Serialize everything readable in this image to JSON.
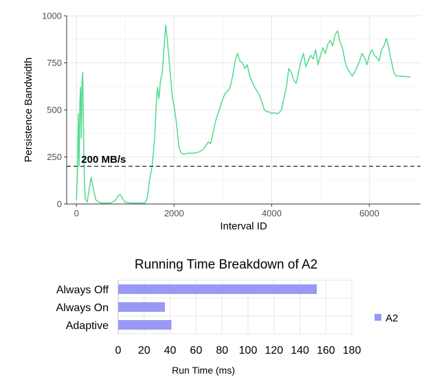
{
  "chart_data": [
    {
      "type": "line",
      "title": "",
      "xlabel": "Interval ID",
      "ylabel": "Persistence Bandwidth",
      "xlim": [
        -200,
        7050
      ],
      "ylim": [
        0,
        1000
      ],
      "x_ticks": [
        0,
        2000,
        4000,
        6000
      ],
      "y_ticks": [
        0,
        250,
        500,
        750,
        1000
      ],
      "grid": true,
      "line_color": "#4cdc8c",
      "reference_line": {
        "y": 200,
        "label": "200 MB/s",
        "style": "dashed"
      },
      "series": [
        {
          "points": [
            [
              0,
              20
            ],
            [
              20,
              150
            ],
            [
              40,
              480
            ],
            [
              55,
              200
            ],
            [
              70,
              540
            ],
            [
              85,
              620
            ],
            [
              100,
              350
            ],
            [
              115,
              650
            ],
            [
              130,
              700
            ],
            [
              145,
              400
            ],
            [
              160,
              150
            ],
            [
              180,
              30
            ],
            [
              220,
              10
            ],
            [
              260,
              80
            ],
            [
              300,
              140
            ],
            [
              340,
              90
            ],
            [
              400,
              20
            ],
            [
              500,
              5
            ],
            [
              600,
              5
            ],
            [
              700,
              5
            ],
            [
              800,
              20
            ],
            [
              860,
              45
            ],
            [
              900,
              50
            ],
            [
              940,
              30
            ],
            [
              1000,
              10
            ],
            [
              1100,
              5
            ],
            [
              1200,
              5
            ],
            [
              1300,
              5
            ],
            [
              1400,
              5
            ],
            [
              1450,
              30
            ],
            [
              1500,
              130
            ],
            [
              1550,
              200
            ],
            [
              1600,
              340
            ],
            [
              1630,
              500
            ],
            [
              1660,
              620
            ],
            [
              1690,
              560
            ],
            [
              1720,
              650
            ],
            [
              1760,
              700
            ],
            [
              1800,
              850
            ],
            [
              1830,
              950
            ],
            [
              1860,
              880
            ],
            [
              1900,
              760
            ],
            [
              1940,
              640
            ],
            [
              1970,
              560
            ],
            [
              2000,
              520
            ],
            [
              2050,
              430
            ],
            [
              2100,
              300
            ],
            [
              2150,
              270
            ],
            [
              2200,
              265
            ],
            [
              2300,
              270
            ],
            [
              2400,
              270
            ],
            [
              2500,
              275
            ],
            [
              2600,
              290
            ],
            [
              2650,
              310
            ],
            [
              2700,
              330
            ],
            [
              2750,
              320
            ],
            [
              2800,
              380
            ],
            [
              2850,
              440
            ],
            [
              2900,
              480
            ],
            [
              2950,
              520
            ],
            [
              3000,
              560
            ],
            [
              3050,
              590
            ],
            [
              3100,
              600
            ],
            [
              3150,
              620
            ],
            [
              3200,
              680
            ],
            [
              3250,
              760
            ],
            [
              3300,
              800
            ],
            [
              3350,
              760
            ],
            [
              3400,
              750
            ],
            [
              3450,
              720
            ],
            [
              3500,
              740
            ],
            [
              3550,
              680
            ],
            [
              3600,
              650
            ],
            [
              3650,
              620
            ],
            [
              3700,
              600
            ],
            [
              3750,
              580
            ],
            [
              3800,
              540
            ],
            [
              3850,
              500
            ],
            [
              3900,
              490
            ],
            [
              3950,
              490
            ],
            [
              4000,
              480
            ],
            [
              4050,
              485
            ],
            [
              4100,
              480
            ],
            [
              4150,
              485
            ],
            [
              4200,
              500
            ],
            [
              4250,
              560
            ],
            [
              4300,
              620
            ],
            [
              4350,
              720
            ],
            [
              4400,
              700
            ],
            [
              4450,
              660
            ],
            [
              4500,
              640
            ],
            [
              4550,
              700
            ],
            [
              4600,
              760
            ],
            [
              4650,
              800
            ],
            [
              4700,
              730
            ],
            [
              4750,
              760
            ],
            [
              4800,
              790
            ],
            [
              4850,
              770
            ],
            [
              4900,
              820
            ],
            [
              4950,
              740
            ],
            [
              5000,
              790
            ],
            [
              5050,
              830
            ],
            [
              5100,
              800
            ],
            [
              5150,
              850
            ],
            [
              5200,
              870
            ],
            [
              5250,
              840
            ],
            [
              5300,
              900
            ],
            [
              5350,
              920
            ],
            [
              5400,
              860
            ],
            [
              5450,
              830
            ],
            [
              5500,
              760
            ],
            [
              5550,
              720
            ],
            [
              5600,
              700
            ],
            [
              5650,
              680
            ],
            [
              5700,
              700
            ],
            [
              5750,
              730
            ],
            [
              5800,
              760
            ],
            [
              5850,
              800
            ],
            [
              5900,
              780
            ],
            [
              5950,
              740
            ],
            [
              6000,
              790
            ],
            [
              6050,
              820
            ],
            [
              6100,
              790
            ],
            [
              6150,
              780
            ],
            [
              6200,
              760
            ],
            [
              6250,
              820
            ],
            [
              6300,
              840
            ],
            [
              6350,
              880
            ],
            [
              6400,
              830
            ],
            [
              6450,
              760
            ],
            [
              6500,
              700
            ],
            [
              6550,
              680
            ],
            [
              6600,
              680
            ],
            [
              6700,
              678
            ],
            [
              6800,
              675
            ],
            [
              6850,
              675
            ]
          ]
        }
      ]
    },
    {
      "type": "bar",
      "orientation": "horizontal",
      "title": "Running Time Breakdown of A2",
      "xlabel": "Run Time (ms)",
      "ylabel": "",
      "xlim": [
        0,
        180
      ],
      "x_ticks": [
        0,
        20,
        40,
        60,
        80,
        100,
        120,
        140,
        160,
        180
      ],
      "categories": [
        "Always Off",
        "Always On",
        "Adaptive"
      ],
      "series": [
        {
          "name": "A2",
          "values": [
            153,
            36,
            41
          ],
          "color": "#9999f5"
        }
      ],
      "legend": "right",
      "grid": true
    }
  ]
}
